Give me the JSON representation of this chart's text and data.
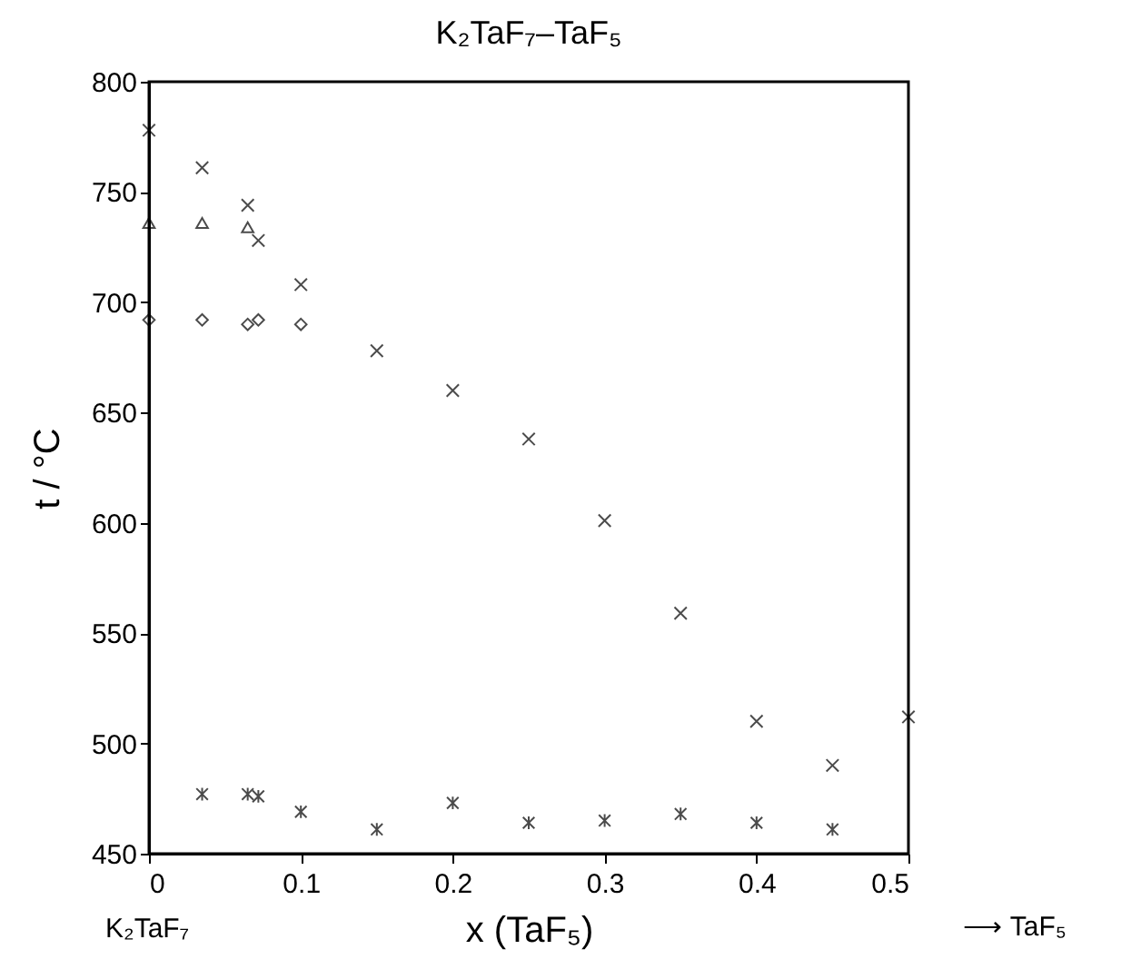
{
  "chart_data": {
    "type": "scatter",
    "title": "K₂TaF₇–TaF₅",
    "xlabel": "x (TaF₅)",
    "ylabel": "t / °C",
    "annotations": [
      "K₂TaF₇",
      "⟶ TaF₅"
    ],
    "xlim": [
      0,
      0.5
    ],
    "xticks": [
      0,
      0.1,
      0.2,
      0.3,
      0.4,
      0.5
    ],
    "ylim": [
      450,
      800
    ],
    "yticks": [
      450,
      500,
      550,
      600,
      650,
      700,
      750,
      800
    ],
    "grid": false,
    "series": [
      {
        "color": "#000000",
        "marker": "cross",
        "x": [
          0,
          0.035,
          0.065,
          0.072,
          0.1,
          0.15,
          0.2,
          0.25,
          0.3,
          0.35,
          0.4,
          0.45,
          0.5
        ],
        "values": [
          778,
          761,
          744,
          728,
          708,
          678,
          660,
          638,
          601,
          559,
          510,
          490,
          512
        ]
      },
      {
        "color": "#000000",
        "marker": "triangle",
        "x": [
          0,
          0.035,
          0.065
        ],
        "values": [
          736,
          736,
          734
        ]
      },
      {
        "color": "#000000",
        "marker": "diamond",
        "x": [
          0,
          0.035,
          0.065,
          0.072,
          0.1
        ],
        "values": [
          692,
          692,
          690,
          692,
          690
        ]
      },
      {
        "color": "#000000",
        "x": [
          0.035,
          0.065,
          0.072,
          0.1,
          0.15,
          0.2,
          0.25,
          0.3,
          0.35,
          0.4,
          0.45
        ],
        "values": [
          477,
          477,
          476,
          469,
          461,
          473,
          464,
          465,
          468,
          464,
          461
        ]
      }
    ]
  }
}
